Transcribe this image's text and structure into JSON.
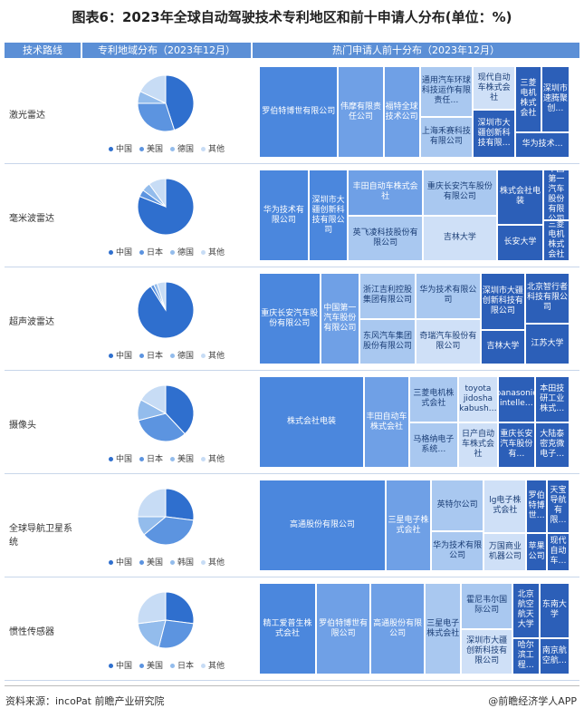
{
  "title": "图表6：2023年全球自动驾驶技术专利地区和前十申请人分布(单位：%)",
  "headers": {
    "col1": "技术路线",
    "col2": "专利地域分布（2023年12月）",
    "col3": "热门申请人前十分布（2023年12月）"
  },
  "colors": {
    "header": "#5b8fd6",
    "c1": "#2f6fce",
    "c2": "#5c94e0",
    "c3": "#93bcec",
    "c4": "#c7dcf5"
  },
  "footer": {
    "source": "资料来源：incoPat 前瞻产业研究院",
    "brand": "@前瞻经济学人APP"
  },
  "chart_data": [
    {
      "type": "pie",
      "label": "激光雷达",
      "categories": [
        "中国",
        "美国",
        "德国",
        "其他"
      ],
      "values": [
        45,
        30,
        7,
        18
      ],
      "treemap": [
        {
          "name": "罗伯特博世有限公司",
          "x": 0,
          "y": 0,
          "w": 0.255,
          "h": 1,
          "c": 1
        },
        {
          "name": "伟摩有限责任公司",
          "x": 0.255,
          "y": 0,
          "w": 0.146,
          "h": 1,
          "c": 2
        },
        {
          "name": "福特全球技术公司",
          "x": 0.401,
          "y": 0,
          "w": 0.117,
          "h": 1,
          "c": 2
        },
        {
          "name": "通用汽车环球科技运作有限责任…",
          "x": 0.518,
          "y": 0,
          "w": 0.17,
          "h": 0.55,
          "c": 3
        },
        {
          "name": "上海禾赛科技有限公司",
          "x": 0.518,
          "y": 0.55,
          "w": 0.17,
          "h": 0.45,
          "c": 3
        },
        {
          "name": "现代自动车株式会社",
          "x": 0.688,
          "y": 0,
          "w": 0.138,
          "h": 0.48,
          "c": 4
        },
        {
          "name": "深圳市大疆创新科技有限…",
          "x": 0.688,
          "y": 0.48,
          "w": 0.138,
          "h": 0.52,
          "c": 0
        },
        {
          "name": "三菱电机株式会社",
          "x": 0.826,
          "y": 0,
          "w": 0.083,
          "h": 0.72,
          "c": 0
        },
        {
          "name": "深圳市速腾聚创…",
          "x": 0.909,
          "y": 0,
          "w": 0.091,
          "h": 0.72,
          "c": 0
        },
        {
          "name": "华为技术…",
          "x": 0.826,
          "y": 0.72,
          "w": 0.174,
          "h": 0.28,
          "c": 0
        }
      ]
    },
    {
      "type": "pie",
      "label": "毫米波雷达",
      "categories": [
        "中国",
        "日本",
        "德国",
        "其他"
      ],
      "values": [
        81,
        4,
        5,
        10
      ],
      "treemap": [
        {
          "name": "华为技术有限公司",
          "x": 0,
          "y": 0,
          "w": 0.16,
          "h": 1,
          "c": 1
        },
        {
          "name": "深圳市大疆创新科技有限公司",
          "x": 0.16,
          "y": 0,
          "w": 0.127,
          "h": 1,
          "c": 1
        },
        {
          "name": "丰田自动车株式会社",
          "x": 0.287,
          "y": 0,
          "w": 0.24,
          "h": 0.5,
          "c": 2
        },
        {
          "name": "英飞凌科技股份有限公司",
          "x": 0.287,
          "y": 0.5,
          "w": 0.24,
          "h": 0.5,
          "c": 3
        },
        {
          "name": "重庆长安汽车股份有限公司",
          "x": 0.527,
          "y": 0,
          "w": 0.24,
          "h": 0.5,
          "c": 3
        },
        {
          "name": "吉林大学",
          "x": 0.527,
          "y": 0.5,
          "w": 0.24,
          "h": 0.5,
          "c": 4
        },
        {
          "name": "株式会社电装",
          "x": 0.767,
          "y": 0,
          "w": 0.148,
          "h": 0.6,
          "c": 0
        },
        {
          "name": "长安大学",
          "x": 0.767,
          "y": 0.6,
          "w": 0.148,
          "h": 0.4,
          "c": 0
        },
        {
          "name": "中国第一汽车股份有限公司",
          "x": 0.915,
          "y": 0,
          "w": 0.085,
          "h": 0.55,
          "c": 0
        },
        {
          "name": "三菱电机株式会社",
          "x": 0.915,
          "y": 0.55,
          "w": 0.085,
          "h": 0.45,
          "c": 0
        }
      ]
    },
    {
      "type": "pie",
      "label": "超声波雷达",
      "categories": [
        "中国",
        "日本",
        "德国",
        "其他"
      ],
      "values": [
        91,
        2,
        2,
        5
      ],
      "treemap": [
        {
          "name": "重庆长安汽车股份有限公司",
          "x": 0,
          "y": 0,
          "w": 0.197,
          "h": 1,
          "c": 1
        },
        {
          "name": "中国第一汽车股份有限公司",
          "x": 0.197,
          "y": 0,
          "w": 0.127,
          "h": 1,
          "c": 2
        },
        {
          "name": "浙江吉利控股集团有限公司",
          "x": 0.324,
          "y": 0,
          "w": 0.18,
          "h": 0.5,
          "c": 3
        },
        {
          "name": "东风汽车集团股份有限公司",
          "x": 0.324,
          "y": 0.5,
          "w": 0.18,
          "h": 0.5,
          "c": 3
        },
        {
          "name": "华为技术有限公司",
          "x": 0.504,
          "y": 0,
          "w": 0.21,
          "h": 0.5,
          "c": 3
        },
        {
          "name": "奇瑞汽车股份有限公司",
          "x": 0.504,
          "y": 0.5,
          "w": 0.21,
          "h": 0.5,
          "c": 4
        },
        {
          "name": "深圳市大疆创新科技有限公司",
          "x": 0.714,
          "y": 0,
          "w": 0.143,
          "h": 0.62,
          "c": 0
        },
        {
          "name": "吉林大学",
          "x": 0.714,
          "y": 0.62,
          "w": 0.143,
          "h": 0.38,
          "c": 0
        },
        {
          "name": "北京智行者科技有限公司",
          "x": 0.857,
          "y": 0,
          "w": 0.143,
          "h": 0.55,
          "c": 0
        },
        {
          "name": "江苏大学",
          "x": 0.857,
          "y": 0.55,
          "w": 0.143,
          "h": 0.45,
          "c": 0
        }
      ]
    },
    {
      "type": "pie",
      "label": "摄像头",
      "categories": [
        "中国",
        "日本",
        "美国",
        "其他"
      ],
      "values": [
        38,
        33,
        12,
        17
      ],
      "treemap": [
        {
          "name": "株式会社电装",
          "x": 0,
          "y": 0,
          "w": 0.338,
          "h": 1,
          "c": 1
        },
        {
          "name": "丰田自动车株式会社",
          "x": 0.338,
          "y": 0,
          "w": 0.146,
          "h": 1,
          "c": 2
        },
        {
          "name": "三菱电机株式会社",
          "x": 0.484,
          "y": 0,
          "w": 0.157,
          "h": 0.5,
          "c": 3
        },
        {
          "name": "马格纳电子系统…",
          "x": 0.484,
          "y": 0.5,
          "w": 0.157,
          "h": 0.5,
          "c": 3
        },
        {
          "name": "toyota jidosha kabush…",
          "x": 0.641,
          "y": 0,
          "w": 0.129,
          "h": 0.5,
          "c": 4
        },
        {
          "name": "日产自动车株式会社",
          "x": 0.641,
          "y": 0.5,
          "w": 0.129,
          "h": 0.5,
          "c": 4
        },
        {
          "name": "panasonic intelle…",
          "x": 0.77,
          "y": 0,
          "w": 0.118,
          "h": 0.5,
          "c": 0
        },
        {
          "name": "重庆长安汽车股份有…",
          "x": 0.77,
          "y": 0.5,
          "w": 0.118,
          "h": 0.5,
          "c": 0
        },
        {
          "name": "本田技研工业株式…",
          "x": 0.888,
          "y": 0,
          "w": 0.112,
          "h": 0.5,
          "c": 0
        },
        {
          "name": "大陆泰密克微电子…",
          "x": 0.888,
          "y": 0.5,
          "w": 0.112,
          "h": 0.5,
          "c": 0
        }
      ]
    },
    {
      "type": "pie",
      "label": "全球导航卫星系统",
      "categories": [
        "中国",
        "美国",
        "韩国",
        "其他"
      ],
      "values": [
        27,
        37,
        11,
        25
      ],
      "treemap": [
        {
          "name": "高通股份有限公司",
          "x": 0,
          "y": 0,
          "w": 0.408,
          "h": 1,
          "c": 1
        },
        {
          "name": "三星电子株式会社",
          "x": 0.408,
          "y": 0,
          "w": 0.146,
          "h": 1,
          "c": 2
        },
        {
          "name": "英特尔公司",
          "x": 0.554,
          "y": 0,
          "w": 0.17,
          "h": 0.56,
          "c": 3
        },
        {
          "name": "华为技术有限公司",
          "x": 0.554,
          "y": 0.56,
          "w": 0.17,
          "h": 0.44,
          "c": 3
        },
        {
          "name": "lg电子株式会社",
          "x": 0.724,
          "y": 0,
          "w": 0.137,
          "h": 0.58,
          "c": 4
        },
        {
          "name": "万国商业机器公司",
          "x": 0.724,
          "y": 0.58,
          "w": 0.137,
          "h": 0.42,
          "c": 4
        },
        {
          "name": "罗伯特博世…",
          "x": 0.861,
          "y": 0,
          "w": 0.066,
          "h": 0.58,
          "c": 0
        },
        {
          "name": "苹果公司",
          "x": 0.861,
          "y": 0.58,
          "w": 0.066,
          "h": 0.42,
          "c": 0
        },
        {
          "name": "天宝导航有限…",
          "x": 0.927,
          "y": 0,
          "w": 0.073,
          "h": 0.58,
          "c": 0
        },
        {
          "name": "现代自动车…",
          "x": 0.927,
          "y": 0.58,
          "w": 0.073,
          "h": 0.42,
          "c": 0
        }
      ]
    },
    {
      "type": "pie",
      "label": "惯性传感器",
      "categories": [
        "中国",
        "美国",
        "日本",
        "其他"
      ],
      "values": [
        27,
        27,
        19,
        27
      ],
      "treemap": [
        {
          "name": "精工爱普生株式会社",
          "x": 0,
          "y": 0,
          "w": 0.184,
          "h": 1,
          "c": 1
        },
        {
          "name": "罗伯特博世有限公司",
          "x": 0.184,
          "y": 0,
          "w": 0.175,
          "h": 1,
          "c": 2
        },
        {
          "name": "高通股份有限公司",
          "x": 0.359,
          "y": 0,
          "w": 0.175,
          "h": 1,
          "c": 2
        },
        {
          "name": "三星电子株式会社",
          "x": 0.534,
          "y": 0,
          "w": 0.117,
          "h": 1,
          "c": 3
        },
        {
          "name": "霍尼韦尔国际公司",
          "x": 0.651,
          "y": 0,
          "w": 0.165,
          "h": 0.5,
          "c": 3
        },
        {
          "name": "深圳市大疆创新科技有限公司",
          "x": 0.651,
          "y": 0.5,
          "w": 0.165,
          "h": 0.5,
          "c": 4
        },
        {
          "name": "北京航空航天大学",
          "x": 0.816,
          "y": 0,
          "w": 0.087,
          "h": 0.6,
          "c": 0
        },
        {
          "name": "哈尔滨工程…",
          "x": 0.816,
          "y": 0.6,
          "w": 0.087,
          "h": 0.4,
          "c": 0
        },
        {
          "name": "东南大学",
          "x": 0.903,
          "y": 0,
          "w": 0.097,
          "h": 0.6,
          "c": 0
        },
        {
          "name": "南京航空航…",
          "x": 0.903,
          "y": 0.6,
          "w": 0.097,
          "h": 0.4,
          "c": 0
        }
      ]
    }
  ]
}
